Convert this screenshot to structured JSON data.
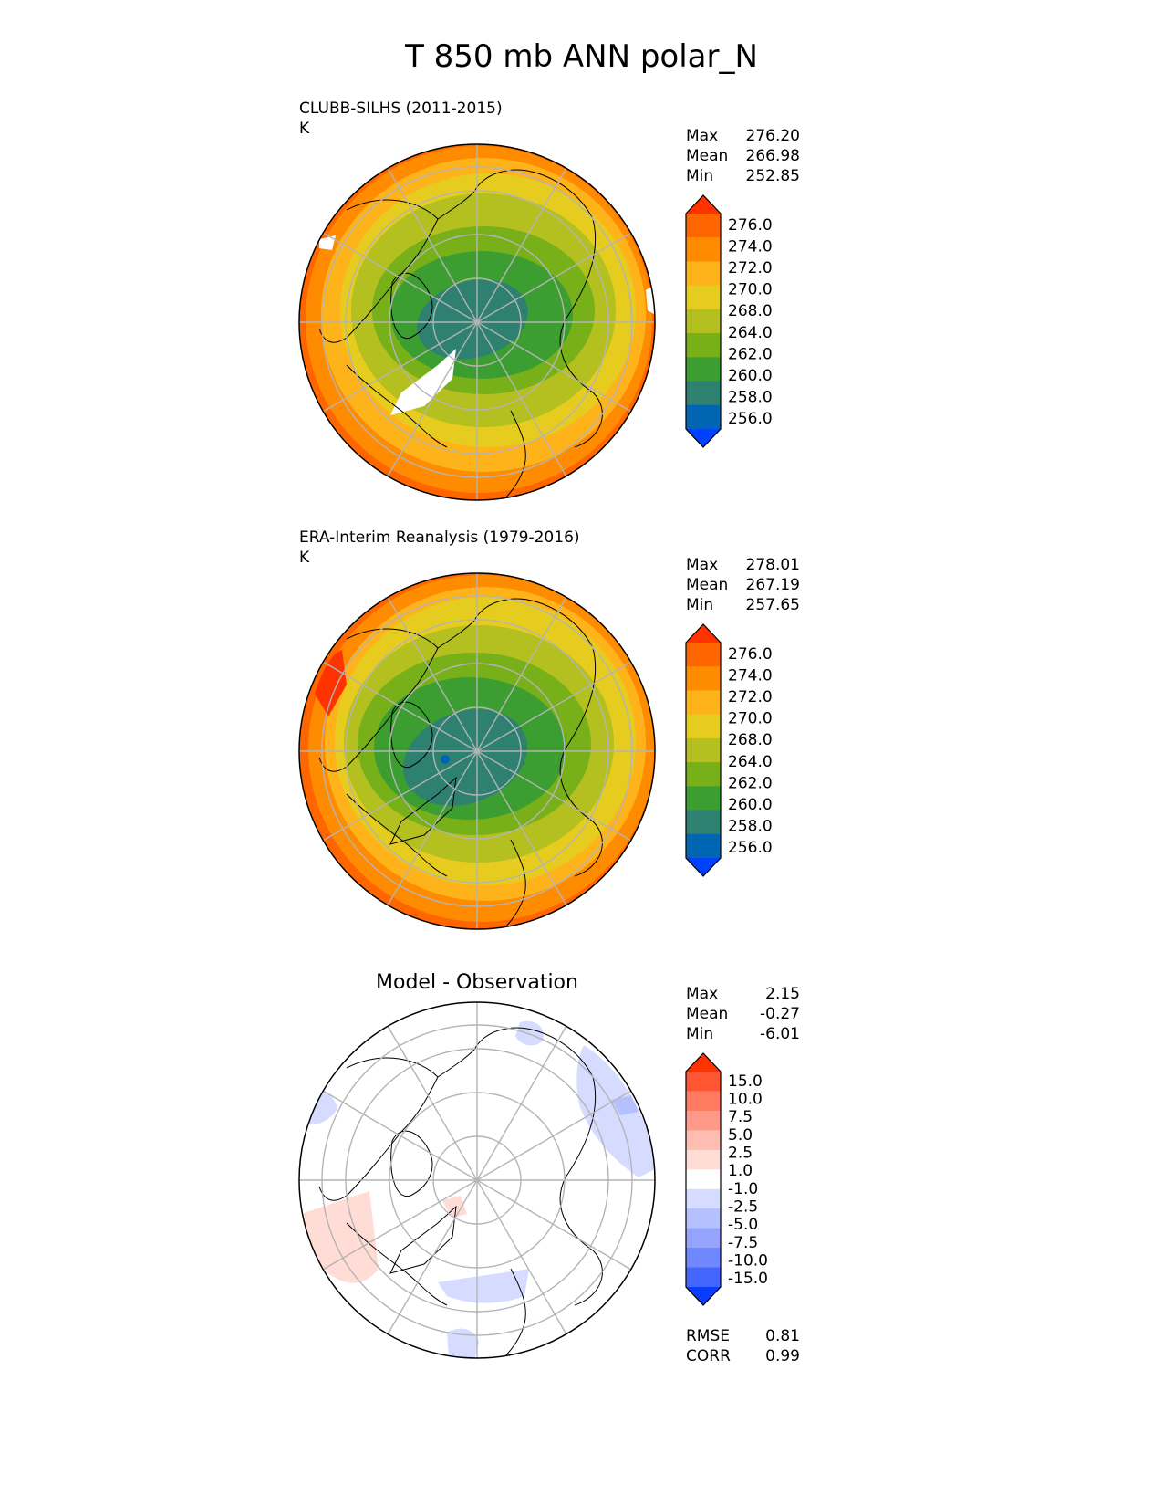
{
  "title": "T 850 mb ANN polar_N",
  "panels": [
    {
      "title": "CLUBB-SILHS (2011-2015)",
      "units": "K",
      "stats": [
        {
          "label": "Max",
          "value": "276.20"
        },
        {
          "label": "Mean",
          "value": "266.98"
        },
        {
          "label": "Min",
          "value": "252.85"
        }
      ]
    },
    {
      "title": "ERA-Interim Reanalysis (1979-2016)",
      "units": "K",
      "stats": [
        {
          "label": "Max",
          "value": "278.01"
        },
        {
          "label": "Mean",
          "value": "267.19"
        },
        {
          "label": "Min",
          "value": "257.65"
        }
      ]
    },
    {
      "title": "Model - Observation",
      "stats": [
        {
          "label": "Max",
          "value": "2.15"
        },
        {
          "label": "Mean",
          "value": "-0.27"
        },
        {
          "label": "Min",
          "value": "-6.01"
        }
      ],
      "metrics": [
        {
          "label": "RMSE",
          "value": "0.81"
        },
        {
          "label": "CORR",
          "value": "0.99"
        }
      ]
    }
  ],
  "chart_data": [
    {
      "type": "heatmap",
      "projection": "north-polar-stereographic",
      "title": "CLUBB-SILHS (2011-2015)",
      "units": "K",
      "colorbar": {
        "ticks": [
          "276.0",
          "274.0",
          "272.0",
          "270.0",
          "268.0",
          "264.0",
          "262.0",
          "260.0",
          "258.0",
          "256.0"
        ],
        "colors": [
          "#ff3300",
          "#ff6600",
          "#ff8c00",
          "#ffb31a",
          "#e6cc1f",
          "#b3c01f",
          "#78b01a",
          "#3c9e30",
          "#2e8070",
          "#0066b3",
          "#0040ff"
        ]
      },
      "max": 276.2,
      "mean": 266.98,
      "min": 252.85
    },
    {
      "type": "heatmap",
      "projection": "north-polar-stereographic",
      "title": "ERA-Interim Reanalysis (1979-2016)",
      "units": "K",
      "colorbar": {
        "ticks": [
          "276.0",
          "274.0",
          "272.0",
          "270.0",
          "268.0",
          "264.0",
          "262.0",
          "260.0",
          "258.0",
          "256.0"
        ],
        "colors": [
          "#ff3300",
          "#ff6600",
          "#ff8c00",
          "#ffb31a",
          "#e6cc1f",
          "#b3c01f",
          "#78b01a",
          "#3c9e30",
          "#2e8070",
          "#0066b3",
          "#0040ff"
        ]
      },
      "max": 278.01,
      "mean": 267.19,
      "min": 257.65
    },
    {
      "type": "heatmap",
      "projection": "north-polar-stereographic",
      "title": "Model - Observation",
      "colorbar": {
        "ticks": [
          "15.0",
          "10.0",
          "7.5",
          "5.0",
          "2.5",
          "1.0",
          "-1.0",
          "-2.5",
          "-5.0",
          "-7.5",
          "-10.0",
          "-15.0"
        ],
        "colors": [
          "#ff3300",
          "#ff5533",
          "#ff7a61",
          "#ff9a88",
          "#ffbcb0",
          "#ffdcd6",
          "#ffffff",
          "#d6dcff",
          "#b5c0ff",
          "#95a5ff",
          "#7088ff",
          "#4466ff",
          "#0a3cff"
        ]
      },
      "max": 2.15,
      "mean": -0.27,
      "min": -6.01,
      "rmse": 0.81,
      "corr": 0.99
    }
  ],
  "colors": {
    "grid": "#b4b4b4",
    "coast": "#000000",
    "diff_negative": "#d6dcff",
    "diff_positive": "#ffdcd6"
  }
}
